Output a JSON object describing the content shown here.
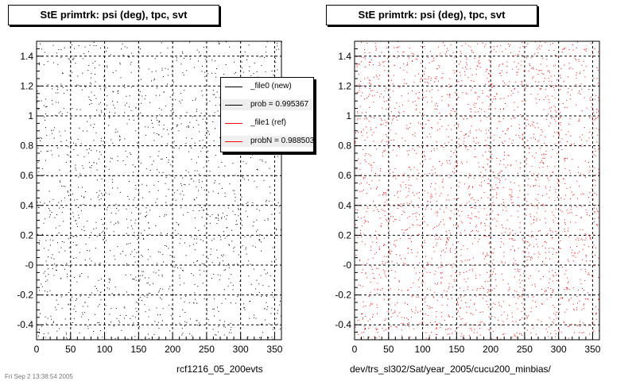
{
  "panels": [
    {
      "title": "StE primtrk: psi (deg), tpc, svt",
      "caption": "rcf1216_05_200evts",
      "point_color": "#000000"
    },
    {
      "title": "StE primtrk: psi (deg), tpc, svt",
      "caption": "dev/trs_sl302/Sat/year_2005/cucu200_minbias/",
      "point_color": "#ff0000"
    }
  ],
  "legend": {
    "entries": [
      {
        "label": "_file0 (new)",
        "color": "#000000"
      },
      {
        "label": "prob = 0.995367",
        "color": "#000000"
      },
      {
        "label": "_file1 (ref)",
        "color": "#ff0000"
      },
      {
        "label": "probN = 0.988503",
        "color": "#ff0000"
      }
    ]
  },
  "footer": "Fri Sep 2 13:38:54 2005",
  "chart_data": [
    {
      "type": "scatter",
      "title": "StE primtrk: psi (deg), tpc, svt",
      "xlabel": "rcf1216_05_200evts",
      "xlim": [
        0,
        360
      ],
      "ylim": [
        -0.5,
        1.5
      ],
      "x_ticks": [
        "0",
        "50",
        "100",
        "150",
        "200",
        "250",
        "300",
        "350"
      ],
      "y_ticks": [
        "-0.4",
        "-0.2",
        "-0",
        "0.2",
        "0.4",
        "0.6",
        "0.8",
        "1",
        "1.2",
        "1.4"
      ],
      "grid": true,
      "series": [
        {
          "name": "_file0 (new)",
          "color": "#000000",
          "distribution": "uniform",
          "approx_points": 1500
        }
      ]
    },
    {
      "type": "scatter",
      "title": "StE primtrk: psi (deg), tpc, svt",
      "xlabel": "dev/trs_sl302/Sat/year_2005/cucu200_minbias/",
      "xlim": [
        0,
        360
      ],
      "ylim": [
        -0.5,
        1.5
      ],
      "x_ticks": [
        "0",
        "50",
        "100",
        "150",
        "200",
        "250",
        "300",
        "350"
      ],
      "y_ticks": [
        "-0.4",
        "-0.2",
        "-0",
        "0.2",
        "0.4",
        "0.6",
        "0.8",
        "1",
        "1.2",
        "1.4"
      ],
      "grid": true,
      "series": [
        {
          "name": "_file1 (ref)",
          "color": "#ff0000",
          "distribution": "uniform",
          "approx_points": 2500
        }
      ]
    }
  ]
}
